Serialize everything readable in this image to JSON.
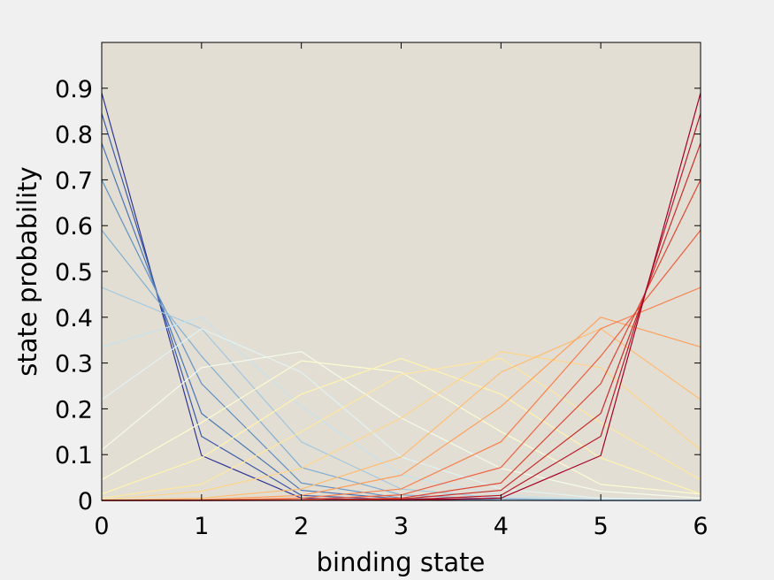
{
  "chart_data": {
    "type": "line",
    "xlabel": "binding state",
    "ylabel": "state probability",
    "xlim": [
      0,
      6
    ],
    "ylim": [
      0,
      1
    ],
    "x": [
      0,
      1,
      2,
      3,
      4,
      5,
      6
    ],
    "x_ticks": [
      "0",
      "1",
      "2",
      "3",
      "4",
      "5",
      "6"
    ],
    "y_ticks": [
      {
        "value": 0,
        "label": "0"
      },
      {
        "value": 0.1,
        "label": "0.1"
      },
      {
        "value": 0.2,
        "label": "0.2"
      },
      {
        "value": 0.3,
        "label": "0.3"
      },
      {
        "value": 0.4,
        "label": "0.4"
      },
      {
        "value": 0.5,
        "label": "0.5"
      },
      {
        "value": 0.6,
        "label": "0.6"
      },
      {
        "value": 0.7,
        "label": "0.7"
      },
      {
        "value": 0.8,
        "label": "0.8"
      },
      {
        "value": 0.9,
        "label": "0.9"
      }
    ],
    "grid": false,
    "legend": "none",
    "plot_background": "#e3ded3",
    "series": [
      {
        "color": "#313695",
        "values": [
          0.89,
          0.098,
          0.005,
          0.0005,
          0.0001,
          1e-05,
          0.0
        ]
      },
      {
        "color": "#3a5aa8",
        "values": [
          0.845,
          0.14,
          0.011,
          0.001,
          0.0002,
          2e-05,
          0.0
        ]
      },
      {
        "color": "#4a75b4",
        "values": [
          0.78,
          0.19,
          0.022,
          0.003,
          0.0004,
          5e-05,
          0.0
        ]
      },
      {
        "color": "#6191c2",
        "values": [
          0.7,
          0.255,
          0.038,
          0.005,
          0.0008,
          0.0001,
          0.0
        ]
      },
      {
        "color": "#80aed2",
        "values": [
          0.59,
          0.315,
          0.072,
          0.012,
          0.002,
          0.0003,
          0.0
        ]
      },
      {
        "color": "#a3c8e0",
        "values": [
          0.465,
          0.375,
          0.128,
          0.025,
          0.005,
          0.001,
          0.0001
        ]
      },
      {
        "color": "#c5e2ee",
        "values": [
          0.335,
          0.4,
          0.205,
          0.055,
          0.011,
          0.002,
          0.0003
        ]
      },
      {
        "color": "#e0f2f3",
        "values": [
          0.22,
          0.375,
          0.28,
          0.095,
          0.025,
          0.005,
          0.001
        ]
      },
      {
        "color": "#f4fbe8",
        "values": [
          0.11,
          0.29,
          0.325,
          0.18,
          0.07,
          0.02,
          0.005
        ]
      },
      {
        "color": "#fdfbd0",
        "values": [
          0.045,
          0.17,
          0.305,
          0.28,
          0.15,
          0.035,
          0.014
        ]
      },
      {
        "color": "#fff3b0",
        "values": [
          0.014,
          0.093,
          0.232,
          0.31,
          0.232,
          0.093,
          0.014
        ]
      },
      {
        "color": "#fee7a0",
        "values": [
          0.005,
          0.035,
          0.15,
          0.275,
          0.31,
          0.17,
          0.045
        ]
      },
      {
        "color": "#fdd58a",
        "values": [
          0.001,
          0.02,
          0.07,
          0.18,
          0.325,
          0.29,
          0.11
        ]
      },
      {
        "color": "#fdbd73",
        "values": [
          0.0003,
          0.005,
          0.025,
          0.095,
          0.28,
          0.375,
          0.22
        ]
      },
      {
        "color": "#fca05e",
        "values": [
          0.0001,
          0.002,
          0.011,
          0.055,
          0.205,
          0.4,
          0.335
        ]
      },
      {
        "color": "#f7804f",
        "values": [
          0.0,
          0.001,
          0.005,
          0.025,
          0.128,
          0.375,
          0.465
        ]
      },
      {
        "color": "#ec6142",
        "values": [
          0.0,
          0.0003,
          0.002,
          0.012,
          0.072,
          0.315,
          0.59
        ]
      },
      {
        "color": "#dd4533",
        "values": [
          0.0,
          0.0001,
          0.0008,
          0.005,
          0.038,
          0.255,
          0.7
        ]
      },
      {
        "color": "#c92d2b",
        "values": [
          0.0,
          5e-05,
          0.0004,
          0.003,
          0.022,
          0.19,
          0.78
        ]
      },
      {
        "color": "#b81b2b",
        "values": [
          0.0,
          2e-05,
          0.0002,
          0.001,
          0.011,
          0.14,
          0.845
        ]
      },
      {
        "color": "#a50026",
        "values": [
          0.0,
          1e-05,
          0.0001,
          0.0005,
          0.005,
          0.098,
          0.89
        ]
      }
    ]
  }
}
